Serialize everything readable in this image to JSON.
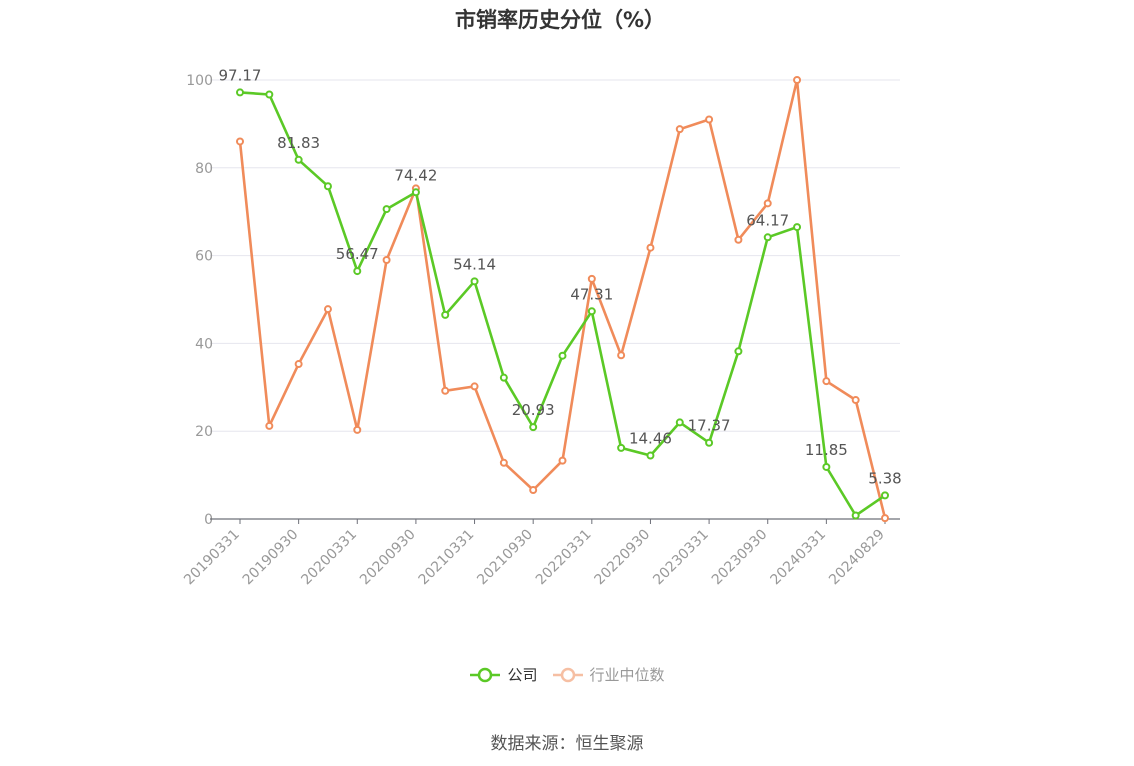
{
  "chart_data": {
    "type": "line",
    "title": "市销率历史分位（%）",
    "xlabel": "",
    "ylabel": "",
    "ylim": [
      0,
      100
    ],
    "yticks": [
      0,
      20,
      40,
      60,
      80,
      100
    ],
    "grid": true,
    "legend_position": "bottom-center",
    "categories": [
      "20190331",
      "20190630",
      "20190930",
      "20191231",
      "20200331",
      "20200630",
      "20200930",
      "20201231",
      "20210331",
      "20210630",
      "20210930",
      "20211231",
      "20220331",
      "20220630",
      "20220930",
      "20221231",
      "20230331",
      "20230630",
      "20230930",
      "20231231",
      "20240331",
      "20240630",
      "20240829"
    ],
    "tick_labels": [
      "20190331",
      "20190930",
      "20200331",
      "20200930",
      "20210331",
      "20210930",
      "20220331",
      "20220930",
      "20230331",
      "20230930",
      "20240331",
      "20240829"
    ],
    "series": [
      {
        "name": "公司",
        "color": "#5bc926",
        "values": [
          97.17,
          96.7,
          81.83,
          75.8,
          56.47,
          70.6,
          74.42,
          46.5,
          54.14,
          32.2,
          20.93,
          37.2,
          47.31,
          16.2,
          14.46,
          22.0,
          17.37,
          38.2,
          64.17,
          66.5,
          11.85,
          0.8,
          5.38
        ],
        "labels": {
          "0": "97.17",
          "2": "81.83",
          "4": "56.47",
          "6": "74.42",
          "8": "54.14",
          "10": "20.93",
          "12": "47.31",
          "14": "14.46",
          "16": "17.37",
          "18": "64.17",
          "20": "11.85",
          "22": "5.38"
        }
      },
      {
        "name": "行业中位数",
        "color": "#f08b5a",
        "values": [
          86.0,
          21.2,
          35.3,
          47.8,
          20.3,
          59.0,
          75.3,
          29.2,
          30.2,
          12.8,
          6.6,
          13.3,
          54.7,
          37.3,
          61.8,
          88.8,
          91.0,
          63.6,
          71.9,
          100.0,
          31.4,
          27.1,
          0.2
        ]
      }
    ]
  },
  "legend": {
    "company": "公司",
    "industry": "行业中位数"
  },
  "source": "数据来源：恒生聚源"
}
